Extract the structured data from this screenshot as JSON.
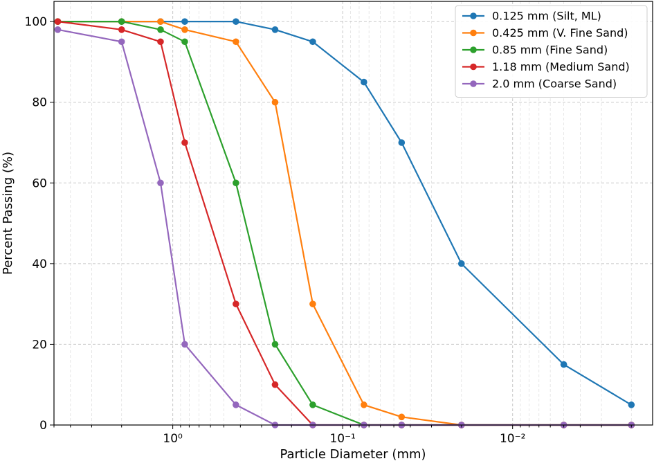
{
  "chart_data": {
    "type": "line",
    "xlabel": "Particle Diameter (mm)",
    "ylabel": "Percent Passing (%)",
    "x_scale": "log",
    "x_reversed": true,
    "xlim": [
      5.0,
      0.0015
    ],
    "ylim": [
      0,
      105
    ],
    "grid": true,
    "legend_position": "top-right",
    "x_ticks": [
      {
        "value": 1,
        "label": "10⁰"
      },
      {
        "value": 0.1,
        "label": "10⁻¹"
      },
      {
        "value": 0.01,
        "label": "10⁻²"
      }
    ],
    "y_ticks": [
      {
        "value": 0,
        "label": "0"
      },
      {
        "value": 20,
        "label": "20"
      },
      {
        "value": 40,
        "label": "40"
      },
      {
        "value": 60,
        "label": "60"
      },
      {
        "value": 80,
        "label": "80"
      },
      {
        "value": 100,
        "label": "100"
      }
    ],
    "x": [
      4.75,
      2.0,
      1.18,
      0.85,
      0.425,
      0.25,
      0.15,
      0.075,
      0.045,
      0.02,
      0.005,
      0.002
    ],
    "series": [
      {
        "name": "0.125 mm (Silt, ML)",
        "color": "#1f77b4",
        "values": [
          100,
          100,
          100,
          100,
          100,
          98,
          95,
          85,
          70,
          40,
          15,
          5
        ]
      },
      {
        "name": "0.425 mm (V. Fine Sand)",
        "color": "#ff7f0e",
        "values": [
          100,
          100,
          100,
          98,
          95,
          80,
          30,
          5,
          2,
          0,
          0,
          0
        ]
      },
      {
        "name": "0.85 mm (Fine Sand)",
        "color": "#2ca02c",
        "values": [
          100,
          100,
          98,
          95,
          60,
          20,
          5,
          0,
          0,
          0,
          0,
          0
        ]
      },
      {
        "name": "1.18 mm (Medium Sand)",
        "color": "#d62728",
        "values": [
          100,
          98,
          95,
          70,
          30,
          10,
          0,
          0,
          0,
          0,
          0,
          0
        ]
      },
      {
        "name": "2.0 mm (Coarse Sand)",
        "color": "#9467bd",
        "values": [
          98,
          95,
          60,
          20,
          5,
          0,
          0,
          0,
          0,
          0,
          0,
          0
        ]
      }
    ]
  }
}
